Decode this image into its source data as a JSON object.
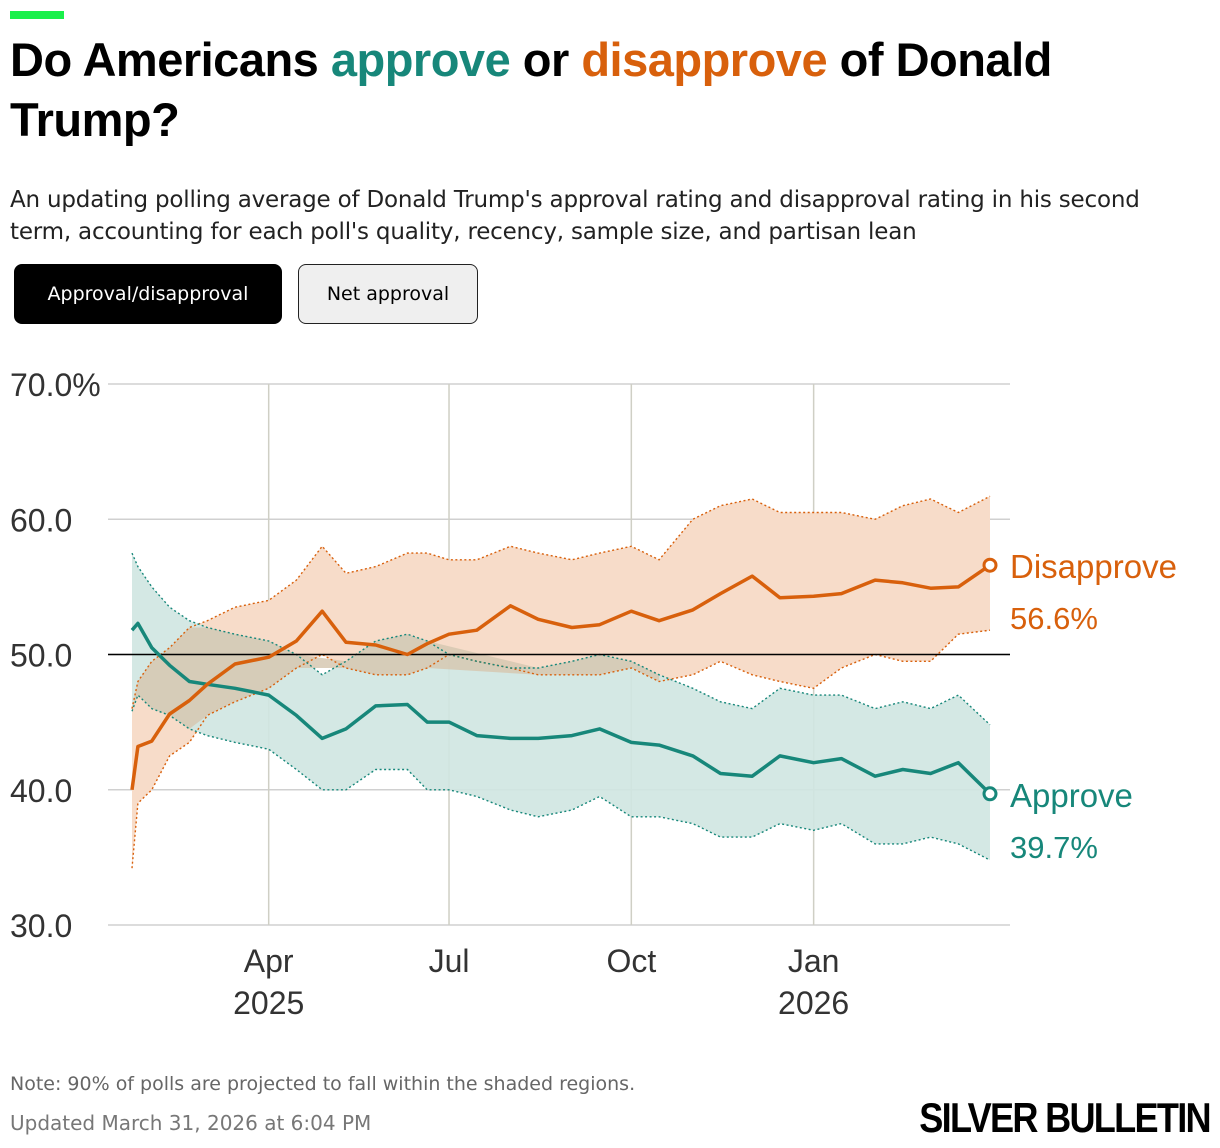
{
  "header": {
    "title_part1": "Do Americans ",
    "title_approve": "approve",
    "title_mid": " or ",
    "title_disapprove": "disapprove",
    "title_part2": " of Donald Trump?",
    "subtitle": "An updating polling average of Donald Trump's approval rating and disapproval rating in his second term, accounting for each poll's quality, recency, sample size, and partisan lean"
  },
  "toggles": [
    {
      "label": "Approval/disapproval",
      "active": true
    },
    {
      "label": "Net approval",
      "active": false
    }
  ],
  "footer": {
    "note": "Note: 90% of polls are projected to fall within the shaded regions.",
    "updated": "Updated March 31, 2026 at 6:04 PM",
    "brand": "SILVER BULLETIN"
  },
  "colors": {
    "approve": "#17877a",
    "disapprove": "#d8600c",
    "approve_band": "#cfe6e1",
    "disapprove_band": "#f7dcc9",
    "overlap_band": "#d6c8b2",
    "accent": "#19f04a"
  },
  "chart_data": {
    "type": "line",
    "x_labels": [
      {
        "date": "2025-04-01",
        "label": "Apr",
        "year": "2025"
      },
      {
        "date": "2025-07-01",
        "label": "Jul",
        "year": ""
      },
      {
        "date": "2025-10-01",
        "label": "Oct",
        "year": ""
      },
      {
        "date": "2026-01-01",
        "label": "Jan",
        "year": "2026"
      }
    ],
    "xlim": [
      "2025-01-20",
      "2026-03-31"
    ],
    "ylim": [
      30,
      70
    ],
    "y_ticks": [
      {
        "value": 70,
        "label": "70.0%"
      },
      {
        "value": 60,
        "label": "60.0"
      },
      {
        "value": 50,
        "label": "50.0"
      },
      {
        "value": 40,
        "label": "40.0"
      },
      {
        "value": 30,
        "label": "30.0"
      }
    ],
    "reference_line": 50,
    "x": [
      "2025-01-22",
      "2025-01-25",
      "2025-02-01",
      "2025-02-10",
      "2025-02-20",
      "2025-03-01",
      "2025-03-15",
      "2025-04-01",
      "2025-04-15",
      "2025-04-28",
      "2025-05-10",
      "2025-05-25",
      "2025-06-10",
      "2025-06-20",
      "2025-07-01",
      "2025-07-15",
      "2025-08-01",
      "2025-08-15",
      "2025-09-01",
      "2025-09-15",
      "2025-10-01",
      "2025-10-15",
      "2025-11-01",
      "2025-11-15",
      "2025-12-01",
      "2025-12-15",
      "2026-01-01",
      "2026-01-15",
      "2026-02-01",
      "2026-02-15",
      "2026-03-01",
      "2026-03-15",
      "2026-03-31"
    ],
    "series": [
      {
        "name": "Disapprove",
        "final_label": "56.6%",
        "values": [
          40.0,
          43.2,
          43.6,
          45.6,
          46.6,
          47.8,
          49.3,
          49.8,
          51.0,
          53.2,
          50.9,
          50.7,
          50.0,
          50.8,
          51.5,
          51.8,
          53.6,
          52.6,
          52.0,
          52.2,
          53.2,
          52.5,
          53.3,
          54.5,
          55.8,
          54.2,
          54.3,
          54.5,
          55.5,
          55.3,
          54.9,
          55.0,
          56.6
        ],
        "band_high": [
          34.2,
          39.0,
          40.0,
          42.5,
          43.5,
          45.5,
          46.5,
          47.5,
          49.0,
          50.0,
          49.0,
          48.5,
          48.5,
          49.0,
          50.0,
          49.5,
          49.0,
          48.5,
          48.5,
          48.5,
          49.0,
          48.0,
          48.5,
          49.5,
          48.5,
          48.0,
          47.5,
          49.0,
          50.0,
          49.5,
          49.5,
          51.5,
          51.8
        ],
        "band_upper": [
          46.0,
          48.0,
          49.5,
          50.5,
          52.0,
          52.5,
          53.5,
          54.0,
          55.5,
          58.0,
          56.0,
          56.5,
          57.5,
          57.5,
          57.0,
          57.0,
          58.0,
          57.5,
          57.0,
          57.5,
          58.0,
          57.0,
          60.0,
          61.0,
          61.5,
          60.5,
          60.5,
          60.5,
          60.0,
          61.0,
          61.5,
          60.5,
          61.7
        ]
      },
      {
        "name": "Approve",
        "final_label": "39.7%",
        "values": [
          51.8,
          52.3,
          50.5,
          49.2,
          48.0,
          47.8,
          47.5,
          47.0,
          45.5,
          43.8,
          44.5,
          46.2,
          46.3,
          45.0,
          45.0,
          44.0,
          43.8,
          43.8,
          44.0,
          44.5,
          43.5,
          43.3,
          42.5,
          41.2,
          41.0,
          42.5,
          42.0,
          42.3,
          41.0,
          41.5,
          41.2,
          42.0,
          39.7
        ],
        "band_low": [
          45.8,
          47.0,
          46.0,
          45.5,
          44.5,
          44.0,
          43.5,
          43.0,
          41.5,
          40.0,
          40.0,
          41.5,
          41.5,
          40.0,
          40.0,
          39.5,
          38.5,
          38.0,
          38.5,
          39.5,
          38.0,
          38.0,
          37.5,
          36.5,
          36.5,
          37.5,
          37.0,
          37.5,
          36.0,
          36.0,
          36.5,
          36.0,
          34.8
        ],
        "band_upper": [
          57.5,
          56.5,
          55.0,
          53.5,
          52.5,
          52.0,
          51.5,
          51.0,
          50.0,
          48.5,
          49.5,
          51.0,
          51.5,
          51.0,
          50.0,
          49.5,
          49.0,
          49.0,
          49.5,
          50.0,
          49.5,
          48.5,
          47.5,
          46.5,
          46.0,
          47.5,
          47.0,
          47.0,
          46.0,
          46.5,
          46.0,
          47.0,
          44.8
        ]
      }
    ],
    "end_labels": [
      {
        "series": "Disapprove",
        "name": "Disapprove",
        "value": "56.6%"
      },
      {
        "series": "Approve",
        "name": "Approve",
        "value": "39.7%"
      }
    ]
  }
}
